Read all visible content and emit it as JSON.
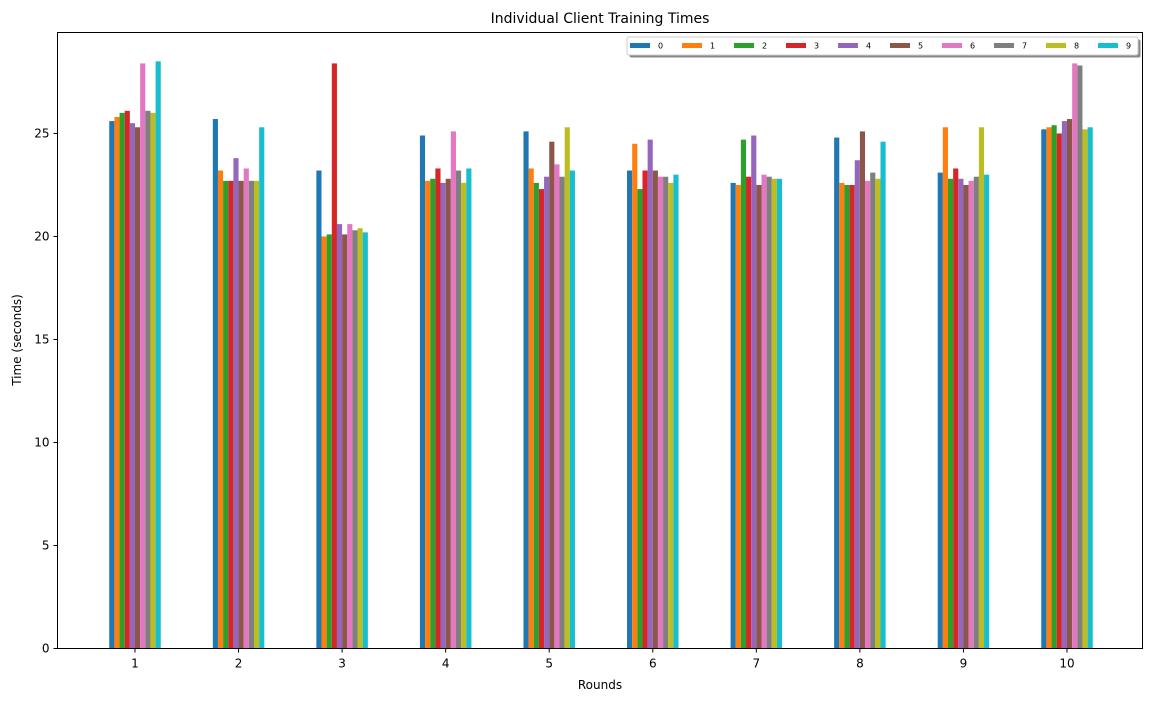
{
  "chart_data": {
    "type": "bar",
    "title": "Individual Client Training Times",
    "xlabel": "Rounds",
    "ylabel": "Time (seconds)",
    "categories": [
      "1",
      "2",
      "3",
      "4",
      "5",
      "6",
      "7",
      "8",
      "9",
      "10"
    ],
    "ylim": [
      0,
      29.9
    ],
    "yticks": [
      "0",
      "5",
      "10",
      "15",
      "20",
      "25"
    ],
    "grid": false,
    "legend_position": "top-right",
    "series": [
      {
        "name": "0",
        "color": "#1f77b4",
        "values": [
          25.6,
          25.7,
          23.2,
          24.9,
          25.1,
          23.2,
          22.6,
          24.8,
          23.1,
          25.2
        ]
      },
      {
        "name": "1",
        "color": "#ff7f0e",
        "values": [
          25.8,
          23.2,
          20.0,
          22.7,
          23.3,
          24.5,
          22.5,
          22.6,
          25.3,
          25.3
        ]
      },
      {
        "name": "2",
        "color": "#2ca02c",
        "values": [
          26.0,
          22.7,
          20.1,
          22.8,
          22.6,
          22.3,
          24.7,
          22.5,
          22.8,
          25.4
        ]
      },
      {
        "name": "3",
        "color": "#d62728",
        "values": [
          26.1,
          22.7,
          28.4,
          23.3,
          22.3,
          23.2,
          22.9,
          22.5,
          23.3,
          25.0
        ]
      },
      {
        "name": "4",
        "color": "#9467bd",
        "values": [
          25.5,
          23.8,
          20.6,
          22.6,
          22.9,
          24.7,
          24.9,
          23.7,
          22.8,
          25.6
        ]
      },
      {
        "name": "5",
        "color": "#8c564b",
        "values": [
          25.3,
          22.7,
          20.1,
          22.8,
          24.6,
          23.2,
          22.5,
          25.1,
          22.5,
          25.7
        ]
      },
      {
        "name": "6",
        "color": "#e377c2",
        "values": [
          28.4,
          23.3,
          20.6,
          25.1,
          23.5,
          22.9,
          23.0,
          22.7,
          22.7,
          28.4
        ]
      },
      {
        "name": "7",
        "color": "#7f7f7f",
        "values": [
          26.1,
          22.7,
          20.3,
          23.2,
          22.9,
          22.9,
          22.9,
          23.1,
          22.9,
          28.3
        ]
      },
      {
        "name": "8",
        "color": "#bcbd22",
        "values": [
          26.0,
          22.7,
          20.4,
          22.6,
          25.3,
          22.6,
          22.8,
          22.8,
          25.3,
          25.2
        ]
      },
      {
        "name": "9",
        "color": "#17becf",
        "values": [
          28.5,
          25.3,
          20.2,
          23.3,
          23.2,
          23.0,
          22.8,
          24.6,
          23.0,
          25.3
        ]
      }
    ]
  }
}
